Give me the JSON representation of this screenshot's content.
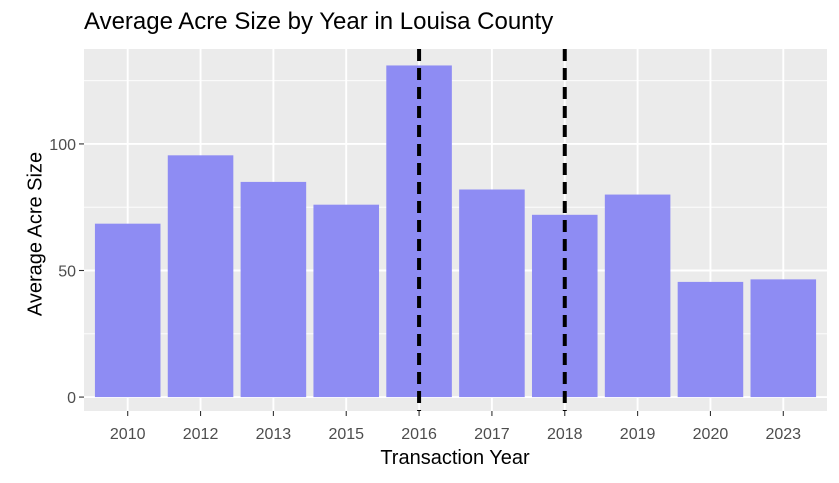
{
  "chart_data": {
    "type": "bar",
    "title": "Average Acre Size by Year in Louisa County",
    "xlabel": "Transaction Year",
    "ylabel": "Average Acre Size",
    "categories": [
      "2010",
      "2012",
      "2013",
      "2015",
      "2016",
      "2017",
      "2018",
      "2019",
      "2020",
      "2023"
    ],
    "values": [
      68.5,
      95.5,
      85,
      76,
      131,
      82,
      72,
      80,
      45.5,
      46.5
    ],
    "ylim": [
      -5.5,
      137.5
    ],
    "yticks": [
      0,
      50,
      100
    ],
    "reference_lines": [
      "2016",
      "2018"
    ],
    "bar_color": "#8e8cf3",
    "panel_background": "#ebebeb",
    "grid": true
  }
}
